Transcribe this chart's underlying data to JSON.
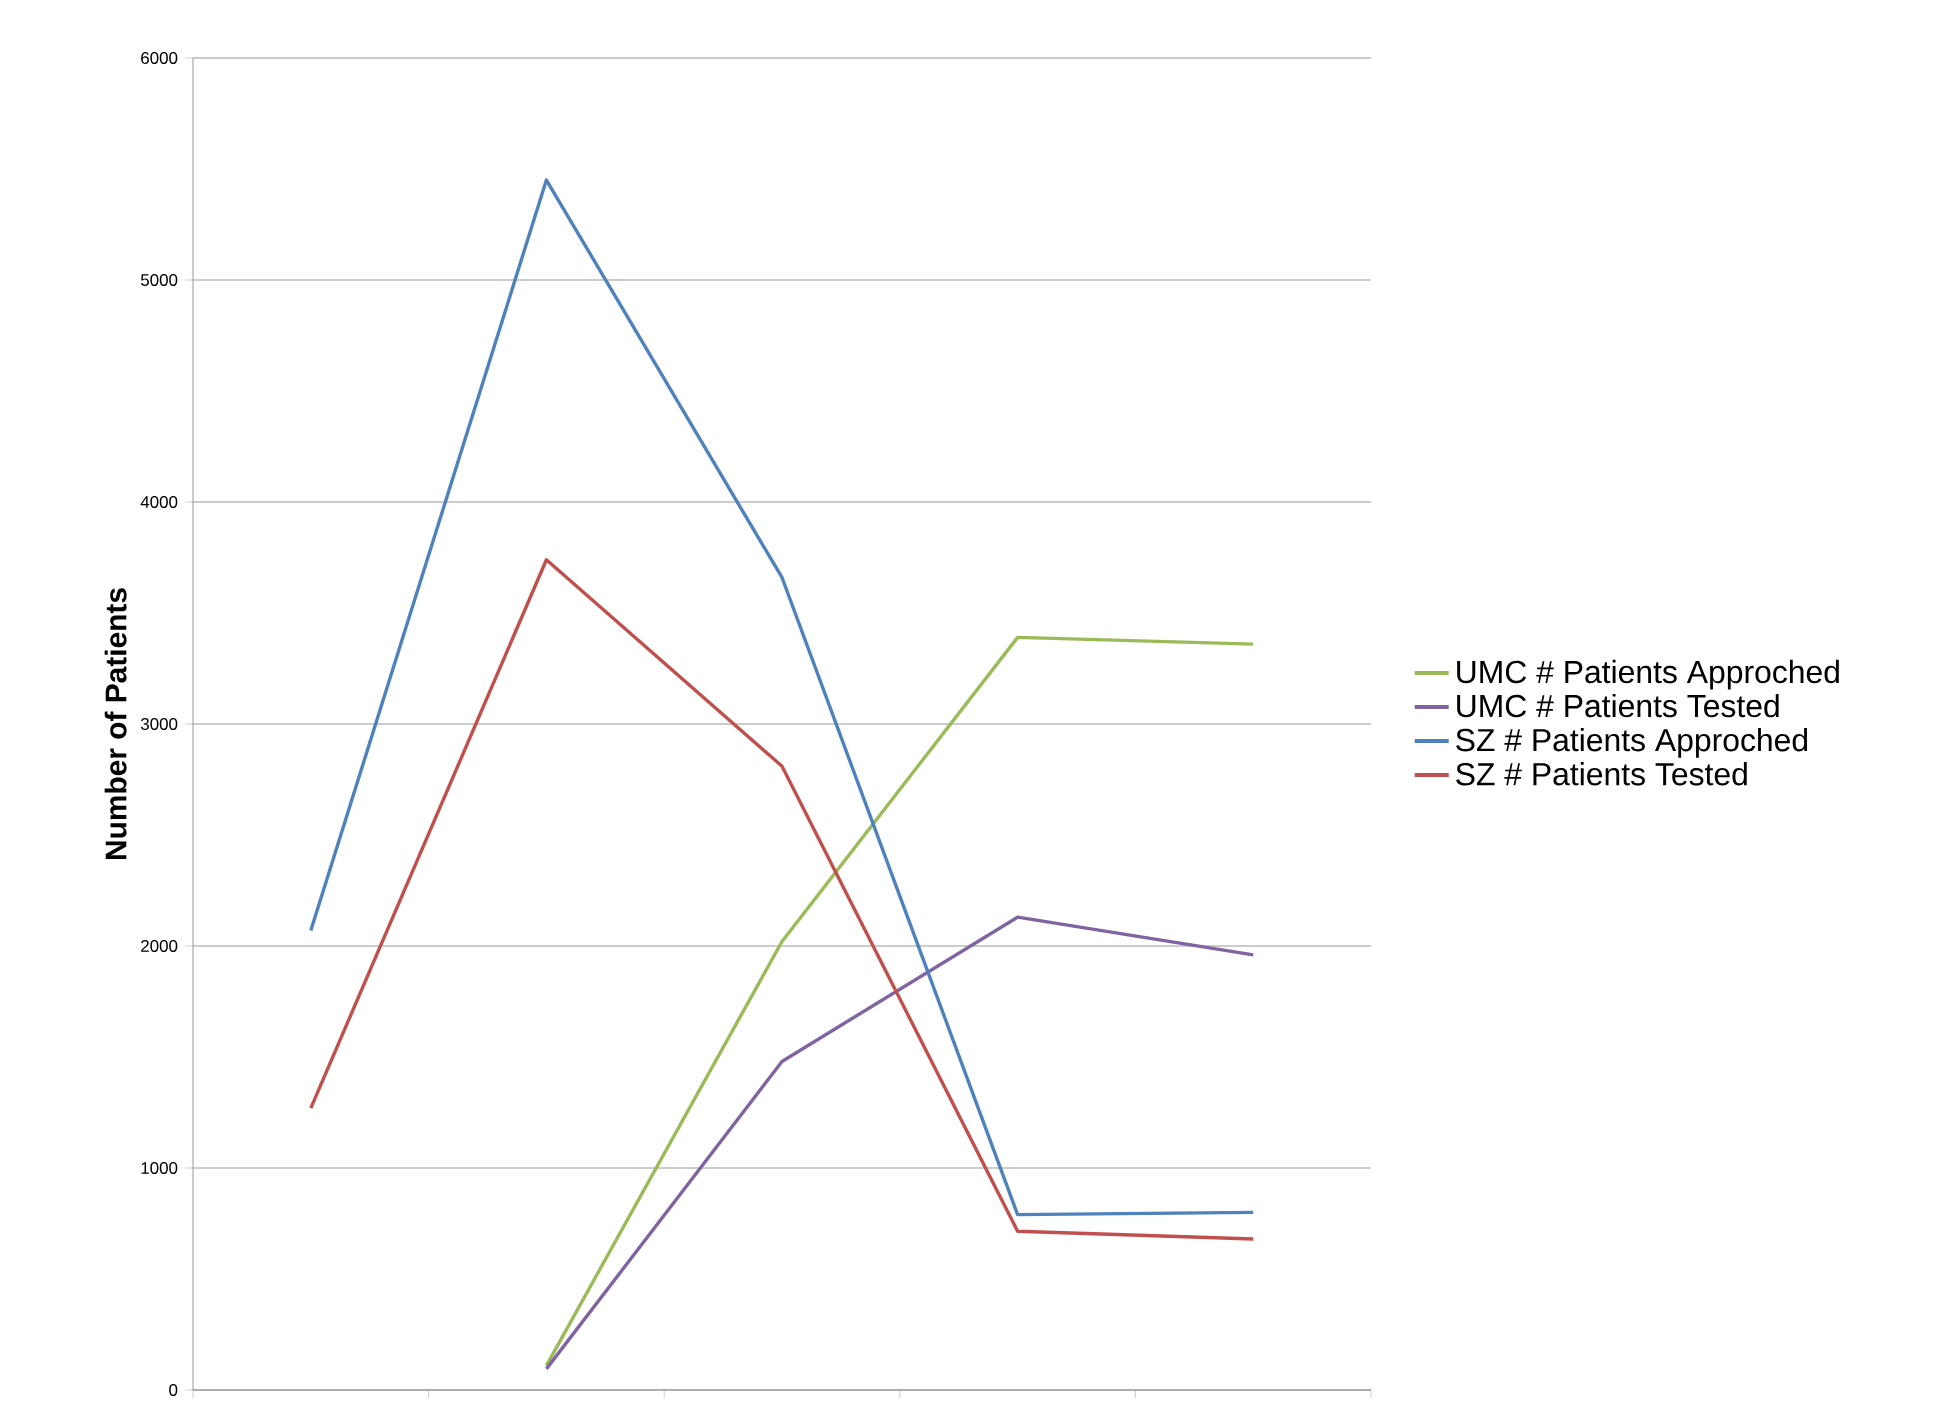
{
  "chart_data": {
    "type": "line",
    "ylabel": "Number of Patients",
    "categories": [
      null,
      null,
      null,
      null,
      null
    ],
    "ylim": [
      0,
      6000
    ],
    "yticks": [
      0,
      1000,
      2000,
      3000,
      4000,
      5000,
      6000
    ],
    "grid": "y",
    "legend": "right",
    "marker": "none",
    "line_style": "solid",
    "series": [
      {
        "name": "UMC # Patients Approched",
        "color": "#9bbb59",
        "values": [
          null,
          110,
          2020,
          3390,
          3360
        ]
      },
      {
        "name": "UMC # Patients Tested",
        "color": "#8064a2",
        "values": [
          null,
          95,
          1480,
          2130,
          1960
        ]
      },
      {
        "name": "SZ # Patients Approched",
        "color": "#4f81bd",
        "values": [
          2070,
          5450,
          3660,
          790,
          800
        ]
      },
      {
        "name": "SZ # Patients Tested",
        "color": "#c0504d",
        "values": [
          1270,
          3740,
          2810,
          715,
          680
        ]
      }
    ]
  }
}
